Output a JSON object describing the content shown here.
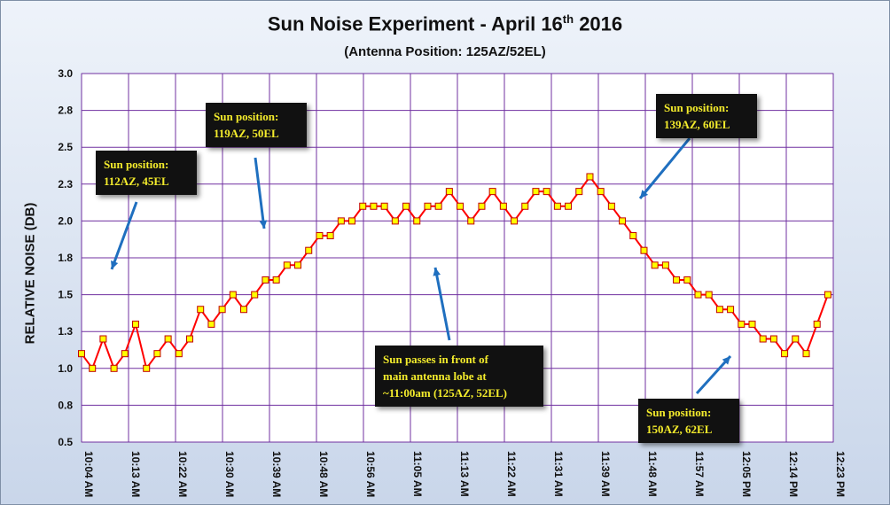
{
  "header": {
    "title_main": "Sun Noise Experiment - April 16",
    "title_sup": "th",
    "title_year": " 2016",
    "subtitle": "(Antenna Position:  125AZ/52EL)"
  },
  "chart_data": {
    "type": "line",
    "ylabel": "RELATIVE NOISE (DB)",
    "ylim": [
      0.5,
      3.0
    ],
    "y_ticks": [
      "3.0",
      "2.8",
      "2.5",
      "2.3",
      "2.0",
      "1.8",
      "1.5",
      "1.3",
      "1.0",
      "0.8",
      "0.5"
    ],
    "x_ticks": [
      "10:04 AM",
      "10:13 AM",
      "10:22 AM",
      "10:30 AM",
      "10:39 AM",
      "10:48 AM",
      "10:56 AM",
      "11:05 AM",
      "11:13 AM",
      "11:22 AM",
      "11:31 AM",
      "11:39 AM",
      "11:48 AM",
      "11:57 AM",
      "12:05 PM",
      "12:14 PM",
      "12:23 PM"
    ],
    "grid": true,
    "series": [
      {
        "color": "#ff0000",
        "marker_color": "#ffff00",
        "x": [
          "10:04 AM",
          "10:06 AM",
          "10:08 AM",
          "10:10 AM",
          "10:12 AM",
          "10:14 AM",
          "10:16 AM",
          "10:18 AM",
          "10:20 AM",
          "10:22 AM",
          "10:24 AM",
          "10:26 AM",
          "10:28 AM",
          "10:30 AM",
          "10:32 AM",
          "10:34 AM",
          "10:36 AM",
          "10:38 AM",
          "10:40 AM",
          "10:42 AM",
          "10:44 AM",
          "10:46 AM",
          "10:48 AM",
          "10:50 AM",
          "10:52 AM",
          "10:54 AM",
          "10:56 AM",
          "10:58 AM",
          "11:00 AM",
          "11:02 AM",
          "11:04 AM",
          "11:06 AM",
          "11:08 AM",
          "11:10 AM",
          "11:12 AM",
          "11:14 AM",
          "11:16 AM",
          "11:18 AM",
          "11:20 AM",
          "11:22 AM",
          "11:24 AM",
          "11:26 AM",
          "11:28 AM",
          "11:30 AM",
          "11:32 AM",
          "11:34 AM",
          "11:36 AM",
          "11:38 AM",
          "11:40 AM",
          "11:42 AM",
          "11:44 AM",
          "11:46 AM",
          "11:48 AM",
          "11:50 AM",
          "11:52 AM",
          "11:54 AM",
          "11:56 AM",
          "11:58 AM",
          "12:00 PM",
          "12:02 PM",
          "12:04 PM",
          "12:06 PM",
          "12:08 PM",
          "12:10 PM",
          "12:12 PM",
          "12:14 PM",
          "12:16 PM",
          "12:18 PM",
          "12:20 PM",
          "12:22 PM"
        ],
        "values": [
          1.1,
          1.0,
          1.2,
          1.0,
          1.1,
          1.3,
          1.0,
          1.1,
          1.2,
          1.1,
          1.2,
          1.4,
          1.3,
          1.4,
          1.5,
          1.4,
          1.5,
          1.6,
          1.6,
          1.7,
          1.7,
          1.8,
          1.9,
          1.9,
          2.0,
          2.0,
          2.1,
          2.1,
          2.1,
          2.0,
          2.1,
          2.0,
          2.1,
          2.1,
          2.2,
          2.1,
          2.0,
          2.1,
          2.2,
          2.1,
          2.0,
          2.1,
          2.2,
          2.2,
          2.1,
          2.1,
          2.2,
          2.3,
          2.2,
          2.1,
          2.0,
          1.9,
          1.8,
          1.7,
          1.7,
          1.6,
          1.6,
          1.5,
          1.5,
          1.4,
          1.4,
          1.3,
          1.3,
          1.2,
          1.2,
          1.1,
          1.2,
          1.1,
          1.3,
          1.5
        ]
      }
    ],
    "annotations": [
      {
        "text": "Sun position:\n112AZ, 45EL"
      },
      {
        "text": "Sun position:\n119AZ, 50EL"
      },
      {
        "text": "Sun position:\n139AZ, 60EL"
      },
      {
        "text": "Sun passes in front of\nmain antenna lobe at\n~11:00am  (125AZ, 52EL)"
      },
      {
        "text": "Sun position:\n150AZ, 62EL"
      }
    ]
  }
}
